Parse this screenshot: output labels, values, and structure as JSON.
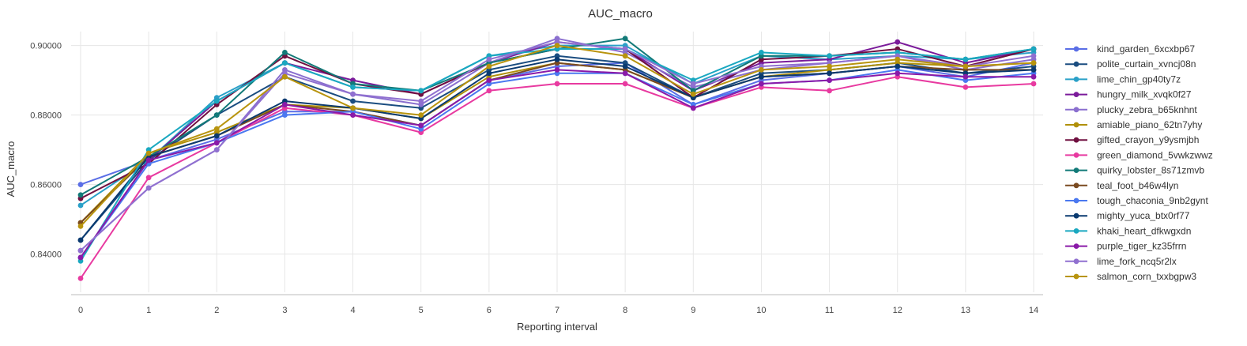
{
  "chart_data": {
    "type": "line",
    "title": "AUC_macro",
    "xlabel": "Reporting interval",
    "ylabel": "AUC_macro",
    "x": [
      0,
      1,
      2,
      3,
      4,
      5,
      6,
      7,
      8,
      9,
      10,
      11,
      12,
      13,
      14
    ],
    "ylim": [
      0.829,
      0.904
    ],
    "yticks": [
      0.84,
      0.86,
      0.88,
      0.9
    ],
    "ytick_labels": [
      "0.84000",
      "0.86000",
      "0.88000",
      "0.90000"
    ],
    "grid": true,
    "legend_position": "right",
    "series": [
      {
        "name": "kind_garden_6xcxbp67",
        "color": "#5a6ee6",
        "values": [
          0.86,
          0.867,
          0.873,
          0.881,
          0.881,
          0.877,
          0.89,
          0.894,
          0.895,
          0.883,
          0.89,
          0.892,
          0.894,
          0.891,
          0.895
        ]
      },
      {
        "name": "polite_curtain_xvncj08n",
        "color": "#1a4d80",
        "values": [
          0.844,
          0.867,
          0.88,
          0.891,
          0.884,
          0.882,
          0.893,
          0.897,
          0.895,
          0.885,
          0.892,
          0.893,
          0.895,
          0.892,
          0.894
        ]
      },
      {
        "name": "lime_chin_gp40ty7z",
        "color": "#2aa0c8",
        "values": [
          0.854,
          0.867,
          0.885,
          0.895,
          0.888,
          0.887,
          0.897,
          0.9,
          0.9,
          0.889,
          0.897,
          0.896,
          0.897,
          0.896,
          0.898
        ]
      },
      {
        "name": "hungry_milk_xvqk0f27",
        "color": "#7a1a9a",
        "values": [
          0.839,
          0.867,
          0.884,
          0.895,
          0.89,
          0.886,
          0.895,
          0.901,
          0.899,
          0.887,
          0.895,
          0.896,
          0.901,
          0.895,
          0.899
        ]
      },
      {
        "name": "plucky_zebra_b65knhnt",
        "color": "#8a6fcf",
        "values": [
          0.841,
          0.859,
          0.87,
          0.893,
          0.886,
          0.883,
          0.895,
          0.902,
          0.898,
          0.888,
          0.893,
          0.895,
          0.897,
          0.893,
          0.896
        ]
      },
      {
        "name": "amiable_piano_62tn7yhy",
        "color": "#b0900a",
        "values": [
          0.849,
          0.869,
          0.875,
          0.883,
          0.882,
          0.879,
          0.891,
          0.895,
          0.893,
          0.885,
          0.891,
          0.893,
          0.895,
          0.894,
          0.895
        ]
      },
      {
        "name": "gifted_crayon_y9ysmjbh",
        "color": "#701040",
        "values": [
          0.856,
          0.866,
          0.883,
          0.897,
          0.889,
          0.886,
          0.895,
          0.899,
          0.899,
          0.885,
          0.896,
          0.897,
          0.899,
          0.894,
          0.899
        ]
      },
      {
        "name": "green_diamond_5vwkzwwz",
        "color": "#e83aa0",
        "values": [
          0.833,
          0.862,
          0.872,
          0.882,
          0.88,
          0.875,
          0.887,
          0.889,
          0.889,
          0.882,
          0.888,
          0.887,
          0.891,
          0.888,
          0.889
        ]
      },
      {
        "name": "quirky_lobster_8s71zmvb",
        "color": "#127a78",
        "values": [
          0.857,
          0.868,
          0.88,
          0.898,
          0.889,
          0.887,
          0.895,
          0.899,
          0.902,
          0.887,
          0.897,
          0.897,
          0.898,
          0.896,
          0.899
        ]
      },
      {
        "name": "teal_foot_b46w4lyn",
        "color": "#7a4a20",
        "values": [
          0.849,
          0.868,
          0.874,
          0.883,
          0.881,
          0.877,
          0.89,
          0.895,
          0.893,
          0.885,
          0.891,
          0.892,
          0.894,
          0.893,
          0.893
        ]
      },
      {
        "name": "tough_chaconia_9nb2gynt",
        "color": "#4a78f0",
        "values": [
          0.839,
          0.866,
          0.872,
          0.88,
          0.881,
          0.876,
          0.889,
          0.892,
          0.892,
          0.883,
          0.889,
          0.89,
          0.893,
          0.89,
          0.892
        ]
      },
      {
        "name": "mighty_yuca_btx0rf77",
        "color": "#0a3a70",
        "values": [
          0.844,
          0.868,
          0.874,
          0.884,
          0.882,
          0.879,
          0.892,
          0.896,
          0.894,
          0.885,
          0.891,
          0.892,
          0.894,
          0.892,
          0.893
        ]
      },
      {
        "name": "khaki_heart_dfkwgxdn",
        "color": "#1aa8c0",
        "values": [
          0.838,
          0.87,
          0.884,
          0.895,
          0.888,
          0.887,
          0.897,
          0.899,
          0.899,
          0.89,
          0.898,
          0.897,
          0.898,
          0.896,
          0.899
        ]
      },
      {
        "name": "purple_tiger_kz35frrn",
        "color": "#8a1aa8",
        "values": [
          0.839,
          0.867,
          0.872,
          0.883,
          0.88,
          0.877,
          0.89,
          0.893,
          0.892,
          0.882,
          0.889,
          0.89,
          0.892,
          0.891,
          0.891
        ]
      },
      {
        "name": "lime_fork_ncq5r2lx",
        "color": "#9070d0",
        "values": [
          0.841,
          0.859,
          0.87,
          0.892,
          0.886,
          0.884,
          0.896,
          0.901,
          0.899,
          0.889,
          0.894,
          0.895,
          0.897,
          0.894,
          0.897
        ]
      },
      {
        "name": "salmon_corn_txxbgpw3",
        "color": "#b8940e",
        "values": [
          0.848,
          0.869,
          0.876,
          0.891,
          0.882,
          0.88,
          0.894,
          0.9,
          0.897,
          0.886,
          0.893,
          0.894,
          0.896,
          0.894,
          0.895
        ]
      }
    ]
  }
}
